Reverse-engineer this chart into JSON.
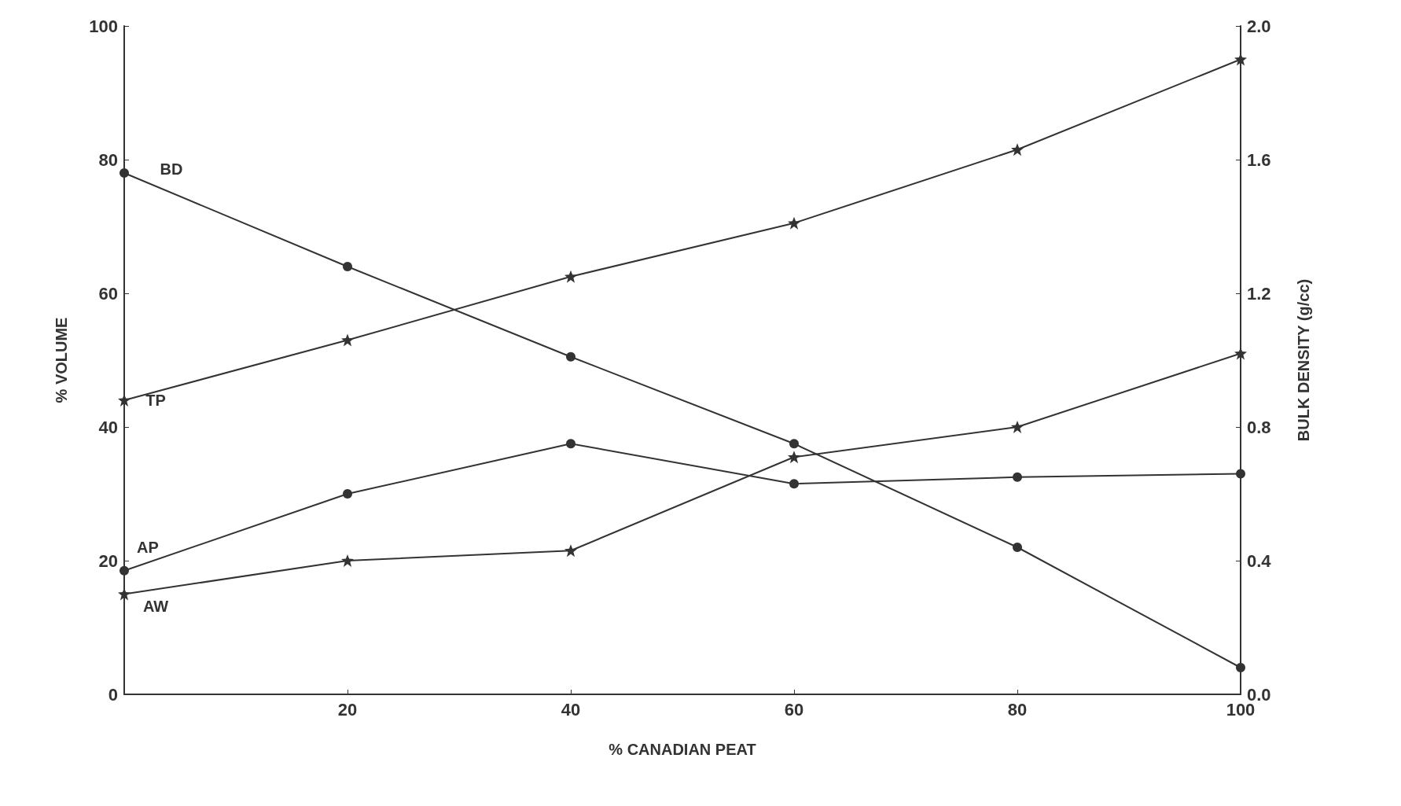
{
  "chart_data": {
    "type": "line",
    "xlabel": "% CANADIAN PEAT",
    "ylabel": "% VOLUME",
    "y2label": "BULK DENSITY (g/cc)",
    "x": [
      0,
      20,
      40,
      60,
      80,
      100
    ],
    "xlim": [
      0,
      100
    ],
    "xticks": [
      {
        "value": 0,
        "label": null
      },
      20,
      40,
      60,
      80,
      100
    ],
    "ylim": [
      0,
      100
    ],
    "yticks": [
      0,
      20,
      40,
      60,
      80,
      100
    ],
    "y2lim": [
      0,
      2
    ],
    "y2ticks": [
      {
        "value": 0,
        "label": "0.0"
      },
      0.4,
      0.8,
      1.2,
      1.6,
      {
        "value": 2,
        "label": "2.0"
      }
    ],
    "grid": false,
    "legend": false,
    "line_style": "solid",
    "series": [
      {
        "name": "BD",
        "color": "#333333",
        "marker": "circle",
        "axis": "y2",
        "values": [
          1.56,
          1.28,
          1.01,
          0.75,
          0.44,
          0.08
        ]
      },
      {
        "name": "TP",
        "color": "#333333",
        "marker": "star",
        "values": [
          44,
          53,
          62.5,
          70.5,
          81.5,
          95
        ]
      },
      {
        "name": "AP",
        "color": "#333333",
        "marker": "circle",
        "values": [
          18.5,
          30,
          37.5,
          31.5,
          32.5,
          33
        ]
      },
      {
        "name": "AW",
        "color": "#333333",
        "marker": "star",
        "values": [
          15,
          20,
          21.5,
          35.5,
          40,
          51
        ]
      }
    ]
  }
}
